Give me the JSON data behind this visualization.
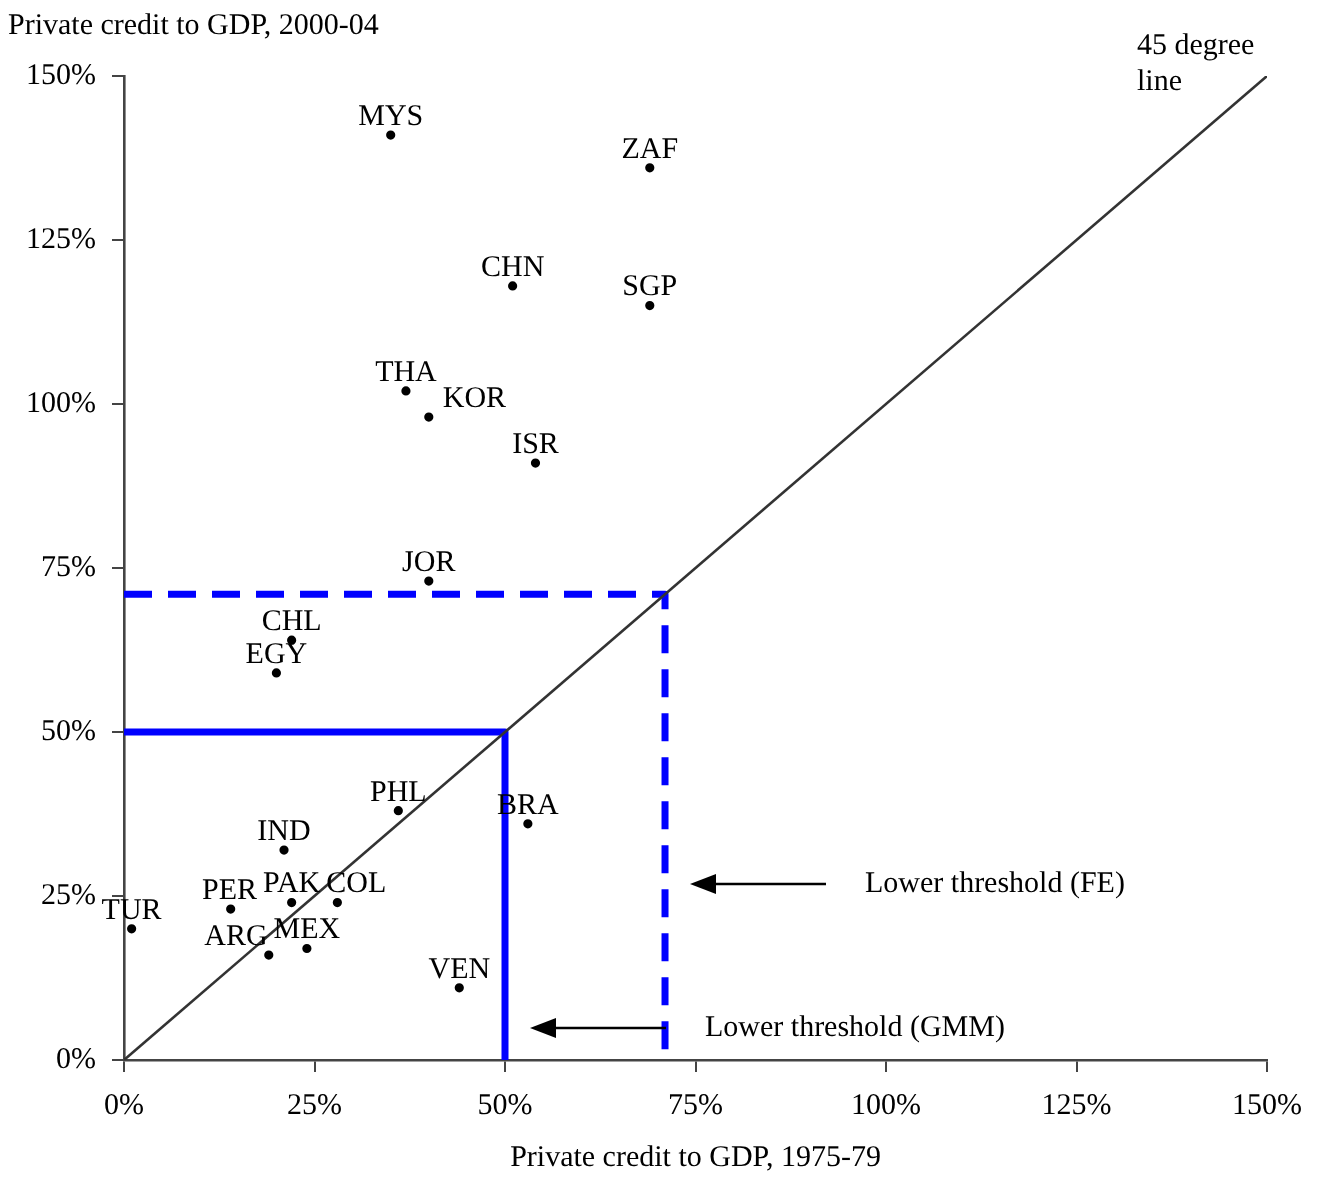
{
  "chart_data": {
    "type": "scatter",
    "xlabel": "Private credit to GDP, 1975-79",
    "ylabel": "Private credit to GDP, 2000-04",
    "marker": "circle",
    "xlim": [
      0,
      150
    ],
    "ylim": [
      0,
      150
    ],
    "xticks": [
      {
        "value": 0,
        "label": "0%"
      },
      {
        "value": 25,
        "label": "25%"
      },
      {
        "value": 50,
        "label": "50%"
      },
      {
        "value": 75,
        "label": "75%"
      },
      {
        "value": 100,
        "label": "100%"
      },
      {
        "value": 125,
        "label": "125%"
      },
      {
        "value": 150,
        "label": "150%"
      }
    ],
    "yticks": [
      {
        "value": 0,
        "label": "0%"
      },
      {
        "value": 25,
        "label": "25%"
      },
      {
        "value": 50,
        "label": "50%"
      },
      {
        "value": 75,
        "label": "75%"
      },
      {
        "value": 100,
        "label": "100%"
      },
      {
        "value": 125,
        "label": "125%"
      },
      {
        "value": 150,
        "label": "150%"
      }
    ],
    "series": [
      {
        "name": "MYS",
        "color": "#000000",
        "x": [
          35
        ],
        "values": [
          141
        ]
      },
      {
        "name": "ZAF",
        "color": "#000000",
        "x": [
          69
        ],
        "values": [
          136
        ]
      },
      {
        "name": "CHN",
        "color": "#000000",
        "x": [
          51
        ],
        "values": [
          118
        ]
      },
      {
        "name": "SGP",
        "color": "#000000",
        "x": [
          69
        ],
        "values": [
          115
        ]
      },
      {
        "name": "THA",
        "color": "#000000",
        "x": [
          37
        ],
        "values": [
          102
        ]
      },
      {
        "name": "KOR",
        "color": "#000000",
        "x": [
          40
        ],
        "values": [
          98
        ]
      },
      {
        "name": "ISR",
        "color": "#000000",
        "x": [
          54
        ],
        "values": [
          91
        ]
      },
      {
        "name": "JOR",
        "color": "#000000",
        "x": [
          40
        ],
        "values": [
          73
        ]
      },
      {
        "name": "CHL",
        "color": "#000000",
        "x": [
          22
        ],
        "values": [
          64
        ]
      },
      {
        "name": "EGY",
        "color": "#000000",
        "x": [
          20
        ],
        "values": [
          59
        ]
      },
      {
        "name": "PHL",
        "color": "#000000",
        "x": [
          36
        ],
        "values": [
          38
        ]
      },
      {
        "name": "BRA",
        "color": "#000000",
        "x": [
          53
        ],
        "values": [
          36
        ]
      },
      {
        "name": "IND",
        "color": "#000000",
        "x": [
          21
        ],
        "values": [
          32
        ]
      },
      {
        "name": "PAK",
        "color": "#000000",
        "x": [
          22
        ],
        "values": [
          24
        ]
      },
      {
        "name": "COL",
        "color": "#000000",
        "x": [
          28
        ],
        "values": [
          24
        ]
      },
      {
        "name": "PER",
        "color": "#000000",
        "x": [
          14
        ],
        "values": [
          23
        ]
      },
      {
        "name": "TUR",
        "color": "#000000",
        "x": [
          1
        ],
        "values": [
          20
        ]
      },
      {
        "name": "MEX",
        "color": "#000000",
        "x": [
          24
        ],
        "values": [
          17
        ]
      },
      {
        "name": "ARG",
        "color": "#000000",
        "x": [
          19
        ],
        "values": [
          16
        ]
      },
      {
        "name": "VEN",
        "color": "#000000",
        "x": [
          44
        ],
        "values": [
          11
        ]
      },
      {
        "type": "line",
        "marker": "none",
        "color": "#333333",
        "x": [
          0,
          150
        ],
        "values": [
          0,
          150
        ]
      },
      {
        "type": "line",
        "marker": "none",
        "color": "#0000ff",
        "line_style": "solid",
        "x": [
          0,
          50,
          50
        ],
        "values": [
          50,
          50,
          0
        ]
      },
      {
        "type": "line",
        "marker": "none",
        "color": "#0000ff",
        "line_style": "dashed",
        "x": [
          0,
          71,
          71
        ],
        "values": [
          71,
          71,
          0
        ]
      }
    ],
    "annotations": [
      "45 degree line",
      "Lower threshold (GMM)",
      "Lower threshold (FE)"
    ]
  }
}
